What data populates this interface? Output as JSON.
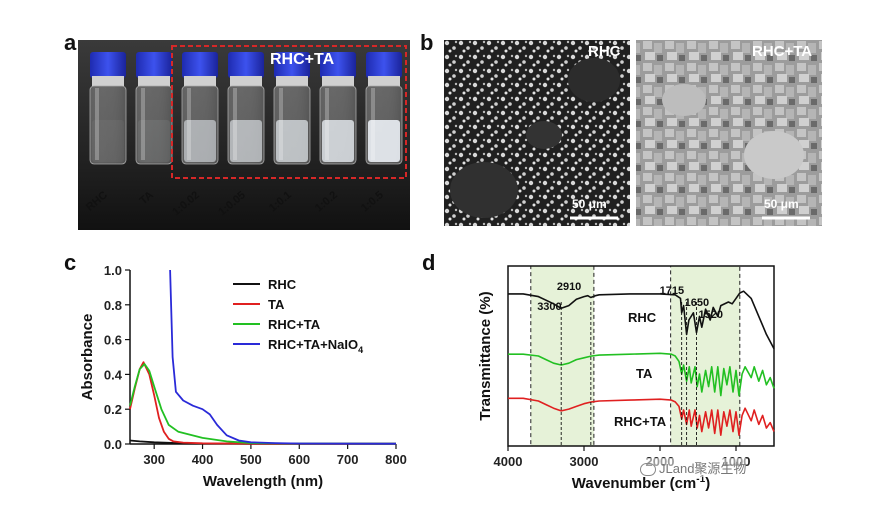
{
  "panels": {
    "a": {
      "letter": "a",
      "group_label": "RHC+TA",
      "vial_labels": [
        "RHC",
        "TA",
        "1:0.02",
        "1:0.05",
        "1:0.1",
        "1:0.2",
        "1:0.5"
      ]
    },
    "b": {
      "letter": "b",
      "left_label": "RHC",
      "right_label": "RHC+TA",
      "scale_left": "50 μm",
      "scale_right": "50 μm"
    },
    "c": {
      "letter": "c",
      "legend": [
        "RHC",
        "TA",
        "RHC+TA",
        "RHC+TA+NaIO"
      ],
      "legend_subscript": "4"
    },
    "d": {
      "letter": "d",
      "peak_labels": [
        "2910",
        "3300",
        "1715",
        "1650",
        "1520"
      ],
      "curve_labels": [
        "RHC",
        "TA",
        "RHC+TA"
      ]
    }
  },
  "watermark": "JLand聚源生物",
  "colors": {
    "RHC": "#111111",
    "TA": "#e02020",
    "RHC+TA": "#22c022",
    "RHC+TA+NaIO4": "#2a2ad8",
    "highlight": "#e6f2d8",
    "frame_red": "#d62828",
    "cap_blue": "#2c3fd6"
  },
  "chart_data": [
    {
      "type": "line",
      "title": "",
      "xlabel": "Wavelength (nm)",
      "ylabel": "Absorbance",
      "xlim": [
        250,
        800
      ],
      "ylim": [
        0,
        1.0
      ],
      "xticks": [
        300,
        400,
        500,
        600,
        700,
        800
      ],
      "yticks": [
        0.0,
        0.2,
        0.4,
        0.6,
        0.8,
        1.0
      ],
      "legend_position": "top-right",
      "series": [
        {
          "name": "RHC",
          "x": [
            250,
            270,
            300,
            350,
            400,
            500,
            800
          ],
          "y": [
            0.02,
            0.015,
            0.01,
            0.005,
            0.003,
            0.002,
            0.002
          ]
        },
        {
          "name": "TA",
          "x": [
            250,
            260,
            270,
            278,
            290,
            300,
            310,
            320,
            330,
            340,
            360,
            400,
            500,
            800
          ],
          "y": [
            0.2,
            0.32,
            0.43,
            0.47,
            0.4,
            0.28,
            0.15,
            0.07,
            0.03,
            0.015,
            0.008,
            0.004,
            0.002,
            0.002
          ]
        },
        {
          "name": "RHC+TA",
          "x": [
            250,
            260,
            270,
            280,
            290,
            300,
            315,
            330,
            350,
            400,
            450,
            500,
            600,
            800
          ],
          "y": [
            0.22,
            0.33,
            0.43,
            0.46,
            0.42,
            0.33,
            0.2,
            0.11,
            0.07,
            0.035,
            0.015,
            0.005,
            0.003,
            0.002
          ]
        },
        {
          "name": "RHC+TA+NaIO4",
          "x": [
            333,
            338,
            345,
            360,
            380,
            400,
            415,
            430,
            450,
            475,
            500,
            550,
            600,
            800
          ],
          "y": [
            1.0,
            0.5,
            0.3,
            0.25,
            0.22,
            0.2,
            0.17,
            0.11,
            0.05,
            0.02,
            0.01,
            0.005,
            0.003,
            0.002
          ]
        }
      ]
    },
    {
      "type": "line",
      "title": "",
      "xlabel": "Wavenumber (cm⁻¹)",
      "ylabel": "Transmittance (%)",
      "xlim": [
        4000,
        500
      ],
      "xticks": [
        4000,
        3000,
        2000,
        1000
      ],
      "y_axis_ticks": "none",
      "highlight_ranges": [
        [
          3700,
          2870
        ],
        [
          1860,
          950
        ]
      ],
      "series": [
        {
          "name": "RHC",
          "x": [
            4000,
            3800,
            3600,
            3500,
            3400,
            3300,
            3200,
            3100,
            3000,
            2950,
            2910,
            2850,
            2800,
            2400,
            2000,
            1800,
            1730,
            1715,
            1690,
            1650,
            1620,
            1560,
            1520,
            1480,
            1450,
            1400,
            1340,
            1300,
            1240,
            1200,
            1100,
            1050,
            1000,
            950,
            900,
            800,
            700,
            600,
            500
          ],
          "y": [
            0.845,
            0.845,
            0.83,
            0.81,
            0.79,
            0.765,
            0.78,
            0.815,
            0.83,
            0.835,
            0.825,
            0.835,
            0.84,
            0.845,
            0.845,
            0.84,
            0.82,
            0.74,
            0.78,
            0.62,
            0.7,
            0.74,
            0.63,
            0.72,
            0.66,
            0.76,
            0.7,
            0.77,
            0.72,
            0.78,
            0.8,
            0.79,
            0.82,
            0.85,
            0.86,
            0.82,
            0.72,
            0.62,
            0.54
          ]
        },
        {
          "name": "TA",
          "x": [
            4000,
            3800,
            3600,
            3500,
            3400,
            3300,
            3200,
            3100,
            3000,
            2900,
            2800,
            2400,
            2000,
            1850,
            1800,
            1750,
            1715,
            1690,
            1650,
            1615,
            1590,
            1540,
            1510,
            1480,
            1450,
            1400,
            1360,
            1320,
            1280,
            1240,
            1200,
            1160,
            1120,
            1080,
            1040,
            1000,
            960,
            920,
            880,
            800,
            760,
            700,
            650,
            600,
            550,
            500
          ],
          "y": [
            0.51,
            0.51,
            0.5,
            0.48,
            0.46,
            0.45,
            0.46,
            0.48,
            0.49,
            0.5,
            0.505,
            0.51,
            0.515,
            0.51,
            0.5,
            0.47,
            0.4,
            0.45,
            0.36,
            0.44,
            0.35,
            0.44,
            0.33,
            0.4,
            0.3,
            0.42,
            0.33,
            0.44,
            0.3,
            0.44,
            0.28,
            0.43,
            0.34,
            0.44,
            0.3,
            0.42,
            0.28,
            0.4,
            0.44,
            0.38,
            0.44,
            0.36,
            0.42,
            0.34,
            0.38,
            0.32
          ]
        },
        {
          "name": "RHC+TA",
          "x": [
            4000,
            3800,
            3600,
            3500,
            3400,
            3300,
            3200,
            3100,
            3000,
            2900,
            2800,
            2400,
            2000,
            1850,
            1800,
            1750,
            1715,
            1690,
            1650,
            1615,
            1590,
            1540,
            1510,
            1480,
            1450,
            1400,
            1360,
            1320,
            1280,
            1240,
            1200,
            1160,
            1120,
            1080,
            1040,
            1000,
            960,
            920,
            880,
            800,
            760,
            700,
            650,
            600,
            550,
            500
          ],
          "y": [
            0.265,
            0.265,
            0.25,
            0.23,
            0.21,
            0.195,
            0.205,
            0.22,
            0.235,
            0.245,
            0.25,
            0.255,
            0.26,
            0.255,
            0.245,
            0.22,
            0.15,
            0.2,
            0.12,
            0.2,
            0.11,
            0.2,
            0.1,
            0.17,
            0.08,
            0.19,
            0.1,
            0.2,
            0.07,
            0.2,
            0.06,
            0.19,
            0.11,
            0.2,
            0.08,
            0.19,
            0.06,
            0.17,
            0.21,
            0.14,
            0.2,
            0.12,
            0.17,
            0.1,
            0.13,
            0.08
          ]
        }
      ],
      "peak_markers": [
        3300,
        2910,
        1715,
        1650,
        1520
      ]
    }
  ]
}
